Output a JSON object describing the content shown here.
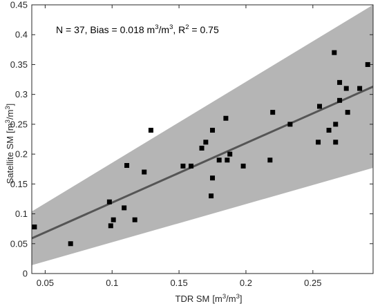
{
  "chart_data": {
    "type": "scatter",
    "xlabel": "TDR SM",
    "xlabel_unit": "[m",
    "xlabel_unit_sup": "3",
    "xlabel_unit_mid": "/m",
    "xlabel_unit_sup2": "3",
    "xlabel_unit_end": "]",
    "ylabel": "Satellite SM",
    "ylabel_unit": "[m",
    "ylabel_unit_sup": "3",
    "ylabel_unit_mid": "/m",
    "ylabel_unit_sup2": "3",
    "ylabel_unit_end": "]",
    "annotation": {
      "part1": "N = 37, Bias = 0.018 m",
      "sup1": "3",
      "part2": "/m",
      "sup2": "3",
      "part3": ", R",
      "sup3": "2",
      "part4": " = 0.75"
    },
    "xlim": [
      0.04,
      0.295
    ],
    "ylim": [
      0,
      0.45
    ],
    "x_ticks": [
      0.05,
      0.1,
      0.15,
      0.2,
      0.25
    ],
    "x_tick_labels": [
      "0.05",
      "0.1",
      "0.15",
      "0.2",
      "0.25"
    ],
    "y_ticks": [
      0,
      0.05,
      0.1,
      0.15,
      0.2,
      0.25,
      0.3,
      0.35,
      0.4,
      0.45
    ],
    "y_tick_labels": [
      "0",
      "0.05",
      "0.1",
      "0.15",
      "0.2",
      "0.25",
      "0.3",
      "0.35",
      "0.4",
      "0.45"
    ],
    "grid": false,
    "regression_line": {
      "x": [
        0.04,
        0.295
      ],
      "y": [
        0.059,
        0.313
      ],
      "color": "#555555"
    },
    "confidence_band": {
      "x": [
        0.04,
        0.295
      ],
      "upper": [
        0.104,
        0.45
      ],
      "lower": [
        0.014,
        0.177
      ],
      "color": "#b5b5b5"
    },
    "marker_color": "#000000",
    "points": [
      {
        "x": 0.042,
        "y": 0.078
      },
      {
        "x": 0.069,
        "y": 0.05
      },
      {
        "x": 0.098,
        "y": 0.12
      },
      {
        "x": 0.099,
        "y": 0.08
      },
      {
        "x": 0.101,
        "y": 0.09
      },
      {
        "x": 0.109,
        "y": 0.11
      },
      {
        "x": 0.111,
        "y": 0.181
      },
      {
        "x": 0.117,
        "y": 0.09
      },
      {
        "x": 0.124,
        "y": 0.17
      },
      {
        "x": 0.129,
        "y": 0.24
      },
      {
        "x": 0.153,
        "y": 0.18
      },
      {
        "x": 0.159,
        "y": 0.18
      },
      {
        "x": 0.167,
        "y": 0.21
      },
      {
        "x": 0.17,
        "y": 0.22
      },
      {
        "x": 0.174,
        "y": 0.13
      },
      {
        "x": 0.175,
        "y": 0.16
      },
      {
        "x": 0.175,
        "y": 0.24
      },
      {
        "x": 0.18,
        "y": 0.19
      },
      {
        "x": 0.185,
        "y": 0.26
      },
      {
        "x": 0.186,
        "y": 0.19
      },
      {
        "x": 0.188,
        "y": 0.2
      },
      {
        "x": 0.198,
        "y": 0.18
      },
      {
        "x": 0.218,
        "y": 0.19
      },
      {
        "x": 0.22,
        "y": 0.27
      },
      {
        "x": 0.233,
        "y": 0.25
      },
      {
        "x": 0.254,
        "y": 0.22
      },
      {
        "x": 0.255,
        "y": 0.28
      },
      {
        "x": 0.262,
        "y": 0.24
      },
      {
        "x": 0.266,
        "y": 0.37
      },
      {
        "x": 0.267,
        "y": 0.25
      },
      {
        "x": 0.267,
        "y": 0.22
      },
      {
        "x": 0.27,
        "y": 0.32
      },
      {
        "x": 0.27,
        "y": 0.29
      },
      {
        "x": 0.275,
        "y": 0.31
      },
      {
        "x": 0.276,
        "y": 0.27
      },
      {
        "x": 0.285,
        "y": 0.31
      },
      {
        "x": 0.291,
        "y": 0.35
      }
    ]
  }
}
